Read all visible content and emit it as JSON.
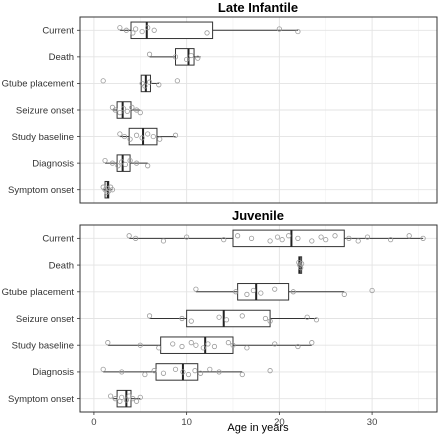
{
  "chart_data": {
    "type": "boxplot",
    "xlabel": "Age in years",
    "xlim": [
      -1.5,
      37
    ],
    "x_ticks": [
      0,
      10,
      20,
      30
    ],
    "grid": true,
    "categories": [
      "Current",
      "Death",
      "Gtube placement",
      "Seizure onset",
      "Study baseline",
      "Diagnosis",
      "Symptom onset"
    ],
    "panels": [
      {
        "title": "Late Infantile",
        "boxes": [
          {
            "category": "Current",
            "whisker_low": 2.8,
            "q1": 4.0,
            "median": 5.7,
            "q3": 12.8,
            "whisker_high": 22.0
          },
          {
            "category": "Death",
            "whisker_low": 6.0,
            "q1": 8.8,
            "median": 10.2,
            "q3": 10.8,
            "whisker_high": 11.5
          },
          {
            "category": "Gtube placement",
            "whisker_low": 5.0,
            "q1": 5.1,
            "median": 5.6,
            "q3": 6.1,
            "whisker_high": 7.0
          },
          {
            "category": "Seizure onset",
            "whisker_low": 2.0,
            "q1": 2.5,
            "median": 3.1,
            "q3": 4.0,
            "whisker_high": 5.0
          },
          {
            "category": "Study baseline",
            "whisker_low": 2.8,
            "q1": 3.8,
            "median": 5.3,
            "q3": 6.8,
            "whisker_high": 8.8
          },
          {
            "category": "Diagnosis",
            "whisker_low": 1.2,
            "q1": 2.5,
            "median": 3.1,
            "q3": 3.9,
            "whisker_high": 5.8
          },
          {
            "category": "Symptom onset",
            "whisker_low": 1.0,
            "q1": 1.2,
            "median": 1.5,
            "q3": 1.6,
            "whisker_high": 2.0
          }
        ],
        "points": [
          {
            "category": "Current",
            "x": [
              2.8,
              3.5,
              4.2,
              4.5,
              5.2,
              5.8,
              6.5,
              12.2,
              20.0,
              22.0
            ]
          },
          {
            "category": "Death",
            "x": [
              6.0,
              8.8,
              10.0,
              10.5,
              11.2
            ]
          },
          {
            "category": "Gtube placement",
            "x": [
              1.0,
              5.2,
              5.5,
              6.0,
              7.0,
              9.0
            ]
          },
          {
            "category": "Seizure onset",
            "x": [
              2.0,
              2.3,
              2.8,
              3.2,
              3.6,
              4.1,
              4.6,
              5.0
            ]
          },
          {
            "category": "Study baseline",
            "x": [
              2.8,
              3.3,
              3.9,
              4.6,
              5.2,
              5.8,
              6.4,
              7.1,
              8.8
            ]
          },
          {
            "category": "Diagnosis",
            "x": [
              1.2,
              2.0,
              2.6,
              3.0,
              3.4,
              3.9,
              4.6,
              5.8
            ]
          },
          {
            "category": "Symptom onset",
            "x": [
              1.0,
              1.2,
              1.4,
              1.5,
              1.6,
              1.8,
              2.0
            ]
          }
        ]
      },
      {
        "title": "Juvenile",
        "boxes": [
          {
            "category": "Current",
            "whisker_low": 3.8,
            "q1": 15.0,
            "median": 21.3,
            "q3": 27.0,
            "whisker_high": 35.5
          },
          {
            "category": "Death",
            "whisker_low": 22.1,
            "q1": 22.1,
            "median": 22.2,
            "q3": 22.4,
            "whisker_high": 22.4
          },
          {
            "category": "Gtube placement",
            "whisker_low": 11.0,
            "q1": 15.5,
            "median": 17.5,
            "q3": 21.0,
            "whisker_high": 27.0
          },
          {
            "category": "Seizure onset",
            "whisker_low": 6.0,
            "q1": 10.0,
            "median": 14.0,
            "q3": 19.0,
            "whisker_high": 24.0
          },
          {
            "category": "Study baseline",
            "whisker_low": 1.5,
            "q1": 7.2,
            "median": 12.0,
            "q3": 15.0,
            "whisker_high": 23.5
          },
          {
            "category": "Diagnosis",
            "whisker_low": 1.0,
            "q1": 6.7,
            "median": 9.6,
            "q3": 11.2,
            "whisker_high": 16.0
          },
          {
            "category": "Symptom onset",
            "whisker_low": 2.0,
            "q1": 2.5,
            "median": 3.5,
            "q3": 4.0,
            "whisker_high": 5.0
          }
        ],
        "points": [
          {
            "category": "Current",
            "x": [
              3.8,
              4.5,
              7.5,
              10.0,
              14.0,
              15.5,
              17.0,
              19.0,
              19.8,
              20.3,
              21.0,
              22.0,
              23.5,
              24.5,
              25.0,
              26.0,
              27.5,
              28.5,
              29.5,
              32.0,
              34.0,
              35.5
            ]
          },
          {
            "category": "Death",
            "x": [
              22.1,
              22.2,
              22.3,
              22.4
            ]
          },
          {
            "category": "Gtube placement",
            "x": [
              11.0,
              15.3,
              16.5,
              17.2,
              18.0,
              19.5,
              21.5,
              27.0,
              30.0
            ]
          },
          {
            "category": "Seizure onset",
            "x": [
              6.0,
              9.5,
              10.5,
              13.5,
              14.3,
              16.0,
              18.5,
              19.0,
              23.0,
              24.0
            ]
          },
          {
            "category": "Study baseline",
            "x": [
              1.5,
              5.0,
              7.0,
              8.5,
              9.5,
              10.5,
              11.0,
              11.8,
              12.3,
              13.0,
              14.5,
              15.0,
              16.5,
              19.5,
              22.0,
              23.5
            ]
          },
          {
            "category": "Diagnosis",
            "x": [
              1.0,
              3.0,
              5.5,
              6.5,
              7.5,
              8.8,
              9.6,
              10.2,
              10.9,
              11.5,
              12.5,
              13.5,
              16.0,
              19.0
            ]
          },
          {
            "category": "Symptom onset",
            "x": [
              1.8,
              2.3,
              2.8,
              3.0,
              3.5,
              3.8,
              4.2,
              4.6,
              5.0
            ]
          }
        ]
      }
    ]
  }
}
